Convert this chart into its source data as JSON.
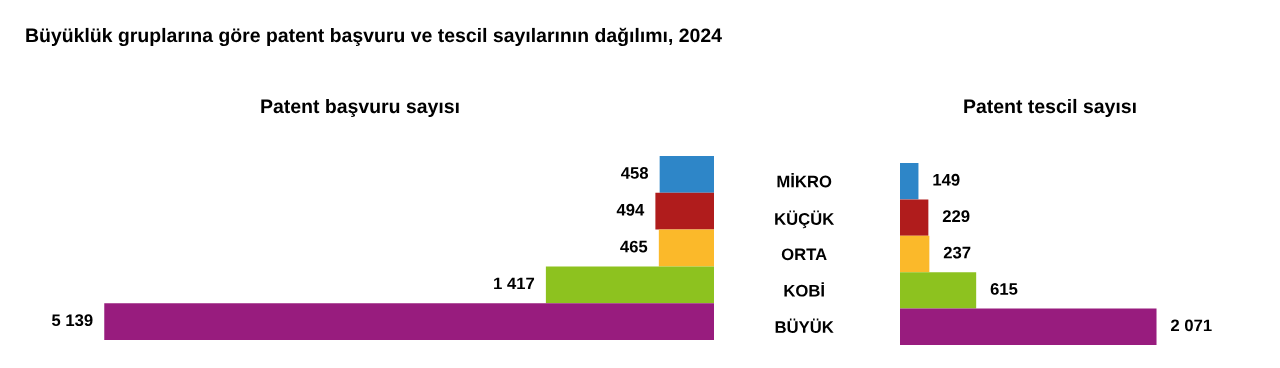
{
  "chart_data": [
    {
      "type": "bar",
      "orientation": "horizontal",
      "title": "Büyüklük gruplarına göre patent başvuru ve tescil sayılarının dağılımı, 2024",
      "subtitle": "Patent başvuru sayısı",
      "categories": [
        null,
        null,
        null,
        null,
        null
      ],
      "values": [
        458,
        494,
        465,
        1417,
        5139
      ],
      "colors": [
        "#2e86c8",
        "#b01c1c",
        "#fbb92a",
        "#8dc21f",
        "#981c7e"
      ],
      "value_labels": [
        "458",
        "494",
        "465",
        "1 417",
        "5 139"
      ],
      "tick_labels": false
    },
    {
      "type": "bar",
      "orientation": "horizontal",
      "title": "Patent tescil sayısı",
      "categories": [
        "MİKRO",
        "KÜÇÜK",
        "ORTA",
        "KOBİ",
        "BÜYÜK"
      ],
      "values": [
        149,
        229,
        237,
        615,
        2071
      ],
      "colors": [
        "#2e86c8",
        "#b01c1c",
        "#fbb92a",
        "#8dc21f",
        "#981c7e"
      ],
      "value_labels": [
        "149",
        "229",
        "237",
        "615",
        "2 071"
      ],
      "tick_labels": "y"
    }
  ]
}
